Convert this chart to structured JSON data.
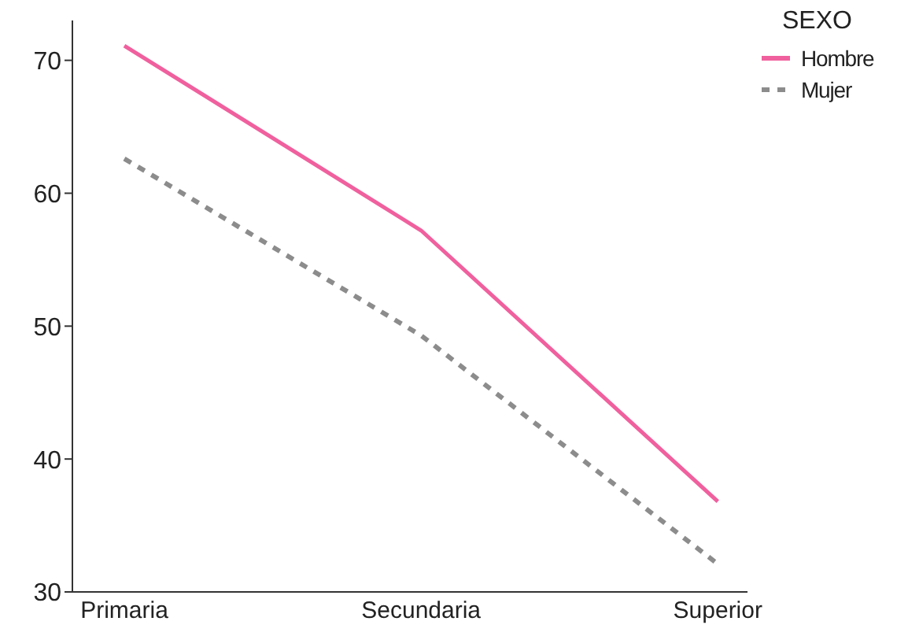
{
  "chart_data": {
    "type": "line",
    "legend_title": "SEXO",
    "legend": "top right",
    "categories": [
      "Primaria",
      "Secundaria",
      "Superior"
    ],
    "ylim": [
      30,
      73
    ],
    "yticks": [
      30,
      40,
      50,
      60,
      70
    ],
    "grid": false,
    "marker": "none",
    "series": [
      {
        "name": "Hombre",
        "color": "#f0609e",
        "values": [
          71.1,
          57.2,
          36.8
        ],
        "line_style": "solid"
      },
      {
        "name": "Mujer",
        "color": "#8c8c8c",
        "values": [
          62.6,
          49.3,
          32.1
        ],
        "line_style": "dashed"
      }
    ]
  }
}
